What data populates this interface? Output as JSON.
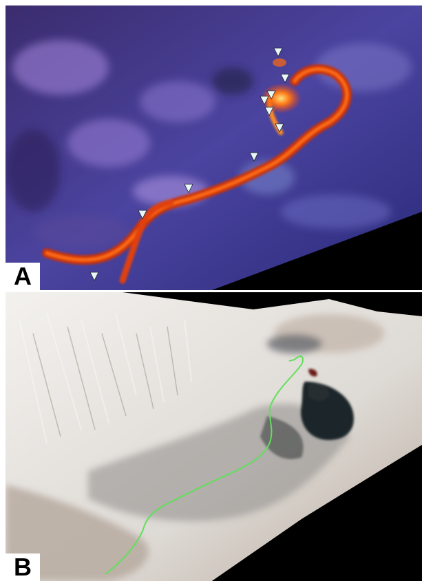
{
  "panels": [
    {
      "id": "A",
      "label": "A",
      "markers": {
        "count": 11,
        "shape": "white downward triangle",
        "color": "#e8f8f6"
      },
      "palette": {
        "terrain": "#4b3d8c",
        "lava": "#ff5a10"
      }
    },
    {
      "id": "B",
      "label": "B",
      "route": {
        "color": "#5fe05a"
      },
      "palette": {
        "terrain": "#eae7e3",
        "lava": "#2a3335"
      }
    }
  ]
}
